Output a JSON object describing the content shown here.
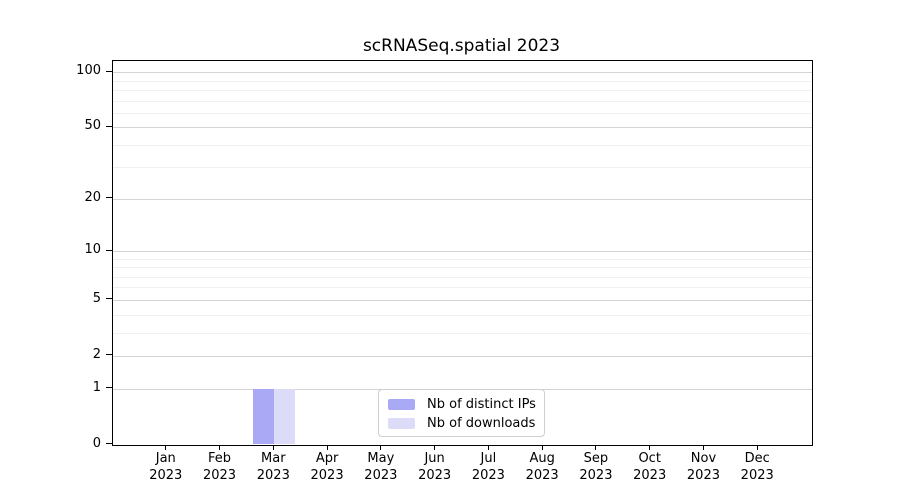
{
  "title": "scRNASeq.spatial 2023",
  "colors": {
    "ips": "#a9a9f5",
    "downloads": "#dcdcf8",
    "grid_major": "#d4d4d4",
    "grid_minor": "#f0f0f0",
    "axis": "#000000",
    "legend_border": "#cfcfcf"
  },
  "y_axis": {
    "major_ticks": [
      100,
      50,
      20,
      10,
      5,
      2,
      1,
      0
    ],
    "minor_ticks": [
      3,
      4,
      6,
      7,
      8,
      9,
      30,
      40,
      60,
      70,
      80,
      90
    ]
  },
  "x_axis": {
    "months": [
      {
        "month": "Jan",
        "year": "2023"
      },
      {
        "month": "Feb",
        "year": "2023"
      },
      {
        "month": "Mar",
        "year": "2023"
      },
      {
        "month": "Apr",
        "year": "2023"
      },
      {
        "month": "May",
        "year": "2023"
      },
      {
        "month": "Jun",
        "year": "2023"
      },
      {
        "month": "Jul",
        "year": "2023"
      },
      {
        "month": "Aug",
        "year": "2023"
      },
      {
        "month": "Sep",
        "year": "2023"
      },
      {
        "month": "Oct",
        "year": "2023"
      },
      {
        "month": "Nov",
        "year": "2023"
      },
      {
        "month": "Dec",
        "year": "2023"
      }
    ]
  },
  "legend": {
    "items": [
      {
        "label": "Nb of distinct IPs",
        "color_key": "ips"
      },
      {
        "label": "Nb of downloads",
        "color_key": "downloads"
      }
    ]
  },
  "chart_data": {
    "type": "bar",
    "title": "scRNASeq.spatial 2023",
    "categories": [
      "Jan 2023",
      "Feb 2023",
      "Mar 2023",
      "Apr 2023",
      "May 2023",
      "Jun 2023",
      "Jul 2023",
      "Aug 2023",
      "Sep 2023",
      "Oct 2023",
      "Nov 2023",
      "Dec 2023"
    ],
    "series": [
      {
        "name": "Nb of distinct IPs",
        "color": "#a9a9f5",
        "values": [
          0,
          0,
          1,
          0,
          0,
          0,
          0,
          0,
          0,
          0,
          0,
          0
        ]
      },
      {
        "name": "Nb of downloads",
        "color": "#dcdcf8",
        "values": [
          0,
          0,
          1,
          0,
          0,
          0,
          0,
          0,
          0,
          0,
          0,
          0
        ]
      }
    ],
    "xlabel": "",
    "ylabel": "",
    "y_scale": "log1p",
    "y_ticks": [
      0,
      1,
      2,
      5,
      10,
      20,
      50,
      100
    ],
    "ylim": [
      0,
      115
    ],
    "grid": "horizontal",
    "legend_position": "inside-bottom-center"
  }
}
